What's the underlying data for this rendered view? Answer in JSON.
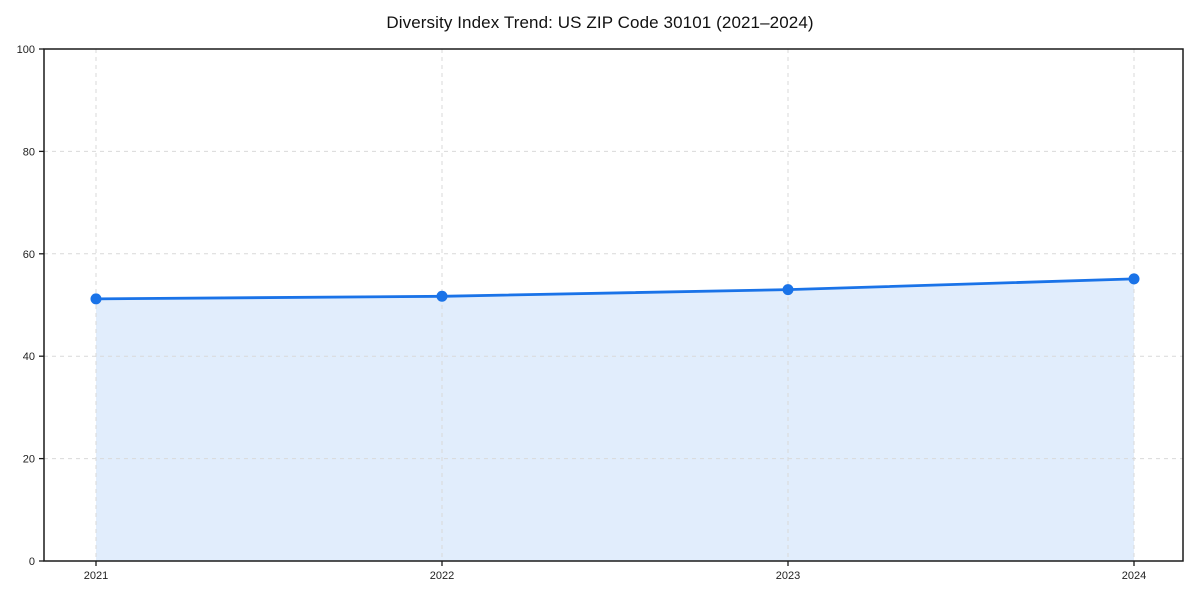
{
  "chart_data": {
    "type": "line",
    "title": "Diversity Index Trend: US ZIP Code 30101 (2021–2024)",
    "x": [
      2021,
      2022,
      2023,
      2024
    ],
    "xtick_labels": [
      "2021",
      "2022",
      "2023",
      "2024"
    ],
    "series": [
      {
        "name": "Diversity Index",
        "values": [
          51.2,
          51.7,
          53.0,
          55.1
        ]
      }
    ],
    "xlabel": "",
    "ylabel": "",
    "ylim": [
      0,
      100
    ],
    "yticks": [
      0,
      20,
      40,
      60,
      80,
      100
    ],
    "grid": "dashed, both axes",
    "legend": "none",
    "area_fill": true,
    "marker": "circle",
    "colors": {
      "line": "#1a73e8",
      "marker": "#1a73e8",
      "area_fill": "rgba(26,115,232,0.13)",
      "grid": "#d9d9d9",
      "spine": "#1a1a1a",
      "title_text": "#111111",
      "tick_text": "#222222",
      "background": "#ffffff"
    }
  }
}
